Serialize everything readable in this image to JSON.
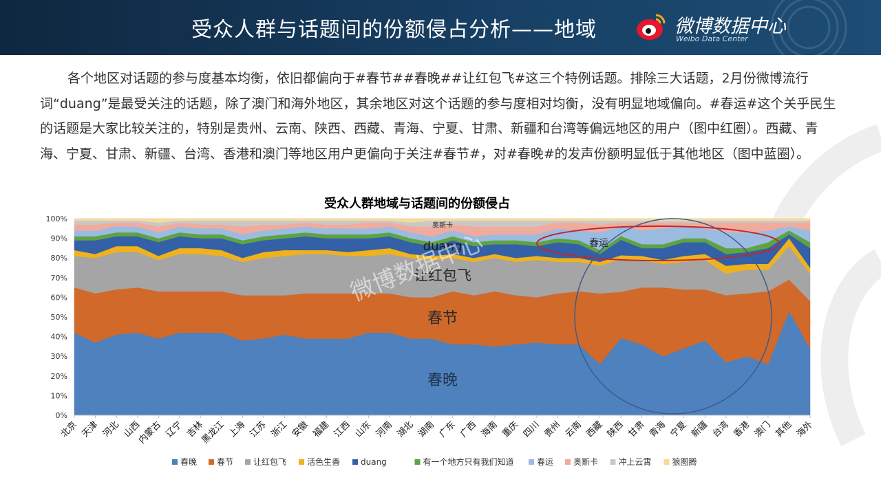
{
  "header": {
    "title": "受众人群与话题间的份额侵占分析——地域",
    "logo_name": "微博数据中心",
    "logo_sub": "Weibo Data Center"
  },
  "paragraph": "各个地区对话题的参与度基本均衡，依旧都偏向于#春节##春晚##让红包飞#这三个特例话题。排除三大话题，2月份微博流行词“duang”是最受关注的话题，除了澳门和海外地区，其余地区对这个话题的参与度相对均衡，没有明显地域偏向。#春运#这个关乎民生的话题是大家比较关注的，特别是贵州、云南、陕西、西藏、青海、宁夏、甘肃、新疆和台湾等偏远地区的用户（图中红圈）。西藏、青海、宁夏、甘肃、新疆、台湾、香港和澳门等地区用户更偏向于关注#春节#，对#春晚#的发声份额明显低于其他地区（图中蓝圈）。",
  "colors": {
    "header_bg": "#173f63",
    "red_circle": "#c0282e",
    "blue_circle": "#3d5c8a"
  },
  "chart_data": {
    "type": "area",
    "stacked": "percent",
    "title": "受众人群地域与话题间的份额侵占",
    "ylim": [
      0,
      100
    ],
    "yticks": [
      "0%",
      "10%",
      "20%",
      "30%",
      "40%",
      "50%",
      "60%",
      "70%",
      "80%",
      "90%",
      "100%"
    ],
    "legend_position": "bottom",
    "categories": [
      "北京",
      "天津",
      "河北",
      "山西",
      "内蒙古",
      "辽宁",
      "吉林",
      "黑龙江",
      "上海",
      "江苏",
      "浙江",
      "安徽",
      "福建",
      "江西",
      "山东",
      "河南",
      "湖北",
      "湖南",
      "广东",
      "广西",
      "海南",
      "重庆",
      "四川",
      "贵州",
      "云南",
      "西藏",
      "陕西",
      "甘肃",
      "青海",
      "宁夏",
      "新疆",
      "台湾",
      "香港",
      "澳门",
      "其他",
      "海外"
    ],
    "series": [
      {
        "name": "春晚",
        "color": "#4e81bd",
        "values": [
          42,
          37,
          41,
          42,
          39,
          42,
          42,
          42,
          38,
          39,
          41,
          39,
          39,
          39,
          42,
          42,
          39,
          39,
          36,
          36,
          35,
          36,
          37,
          36,
          36,
          26,
          40,
          36,
          30,
          34,
          38,
          27,
          30,
          26,
          53,
          34
        ]
      },
      {
        "name": "春节",
        "color": "#d0692a",
        "values": [
          23,
          25,
          23,
          23,
          24,
          21,
          21,
          21,
          23,
          22,
          20,
          23,
          23,
          23,
          20,
          20,
          21,
          21,
          27,
          25,
          28,
          25,
          23,
          26,
          27,
          36,
          24,
          29,
          35,
          30,
          26,
          34,
          32,
          37,
          16,
          24
        ]
      },
      {
        "name": "让红包飞",
        "color": "#a5a5a5",
        "values": [
          16,
          18,
          19,
          18,
          16,
          19,
          19,
          18,
          17,
          19,
          20,
          20,
          20,
          19,
          19,
          20,
          20,
          19,
          17,
          17,
          17,
          17,
          19,
          16,
          15,
          14,
          17,
          14,
          12,
          14,
          15,
          11,
          12,
          11,
          17,
          14
        ]
      },
      {
        "name": "活色生香",
        "color": "#f0b21c",
        "values": [
          3,
          2,
          3,
          3,
          2,
          3,
          3,
          3,
          2,
          3,
          3,
          2,
          2,
          2,
          3,
          3,
          2,
          2,
          2,
          2,
          2,
          2,
          2,
          2,
          2,
          2,
          2,
          2,
          2,
          3,
          3,
          4,
          3,
          3,
          4,
          3
        ]
      },
      {
        "name": "duang",
        "color": "#3360a6",
        "values": [
          5,
          7,
          5,
          5,
          7,
          6,
          5,
          6,
          7,
          6,
          6,
          7,
          6,
          7,
          6,
          6,
          6,
          5,
          7,
          6,
          5,
          7,
          5,
          8,
          7,
          4,
          8,
          4,
          6,
          7,
          6,
          6,
          6,
          8,
          2,
          10
        ]
      },
      {
        "name": "有一个地方只有我们知道",
        "color": "#5ea343",
        "values": [
          2,
          2,
          2,
          2,
          2,
          2,
          2,
          2,
          2,
          2,
          2,
          2,
          2,
          2,
          2,
          2,
          2,
          2,
          2,
          2,
          2,
          2,
          2,
          2,
          2,
          2,
          2,
          2,
          2,
          2,
          2,
          3,
          2,
          3,
          2,
          3
        ]
      },
      {
        "name": "春运",
        "color": "#9bbbe0",
        "values": [
          3,
          3,
          3,
          3,
          3,
          3,
          3,
          3,
          3,
          3,
          3,
          3,
          3,
          3,
          3,
          3,
          3,
          3,
          3,
          3,
          3,
          3,
          4,
          5,
          5,
          9,
          5,
          7,
          8,
          6,
          5,
          8,
          8,
          6,
          2,
          6
        ]
      },
      {
        "name": "奥斯卡",
        "color": "#f1ab9d",
        "values": [
          3,
          3,
          2,
          2,
          3,
          2,
          2,
          2,
          4,
          3,
          2,
          2,
          2,
          2,
          3,
          2,
          3,
          5,
          3,
          5,
          4,
          4,
          4,
          3,
          4,
          4,
          2,
          4,
          3,
          2,
          3,
          5,
          5,
          4,
          2,
          4
        ]
      },
      {
        "name": "冲上云霄",
        "color": "#c8c8c8",
        "values": [
          2,
          2,
          1,
          1,
          2,
          1,
          2,
          2,
          3,
          2,
          2,
          1,
          2,
          2,
          1,
          1,
          2,
          3,
          2,
          3,
          3,
          3,
          3,
          1,
          1,
          2,
          1,
          1,
          1,
          1,
          1,
          1,
          1,
          1,
          1,
          1
        ]
      },
      {
        "name": "狼图腾",
        "color": "#fad89a",
        "values": [
          1,
          1,
          1,
          1,
          2,
          1,
          1,
          1,
          1,
          1,
          1,
          1,
          1,
          1,
          1,
          1,
          2,
          1,
          1,
          1,
          1,
          1,
          1,
          1,
          1,
          1,
          1,
          1,
          1,
          1,
          1,
          1,
          1,
          1,
          1,
          1
        ]
      }
    ],
    "annotations": {
      "label_chunwan": "春晚",
      "label_chunjie": "春节",
      "label_hongbao": "让红包飞",
      "label_duang": "duang",
      "label_oscar": "奥斯卡",
      "label_chunyun": "春运"
    },
    "watermark": "微博数据中心"
  }
}
